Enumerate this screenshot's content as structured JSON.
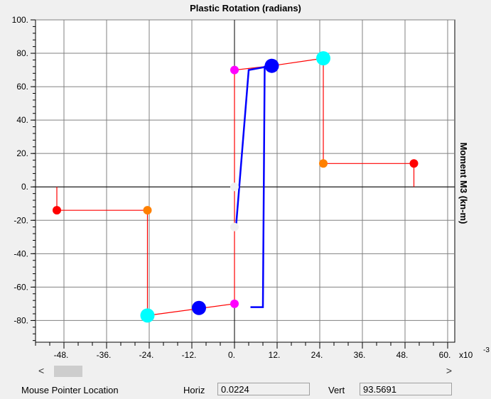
{
  "chart_data": {
    "type": "line",
    "title": "Plastic Rotation  (radians)",
    "ylabel": "Moment M3   (kn-m)",
    "x_multiplier_label": "x10",
    "x_multiplier_exponent": "-3",
    "xlim": [
      -56,
      62
    ],
    "ylim": [
      -93,
      100
    ],
    "x_ticks": [
      -48,
      -36,
      -24,
      -12,
      0,
      12,
      24,
      36,
      48,
      60
    ],
    "x_tick_labels": [
      "-48.",
      "-36.",
      "-24.",
      "-12.",
      "0.",
      "12.",
      "24.",
      "36.",
      "48.",
      "60."
    ],
    "y_ticks": [
      100,
      80,
      60,
      40,
      20,
      0,
      -20,
      -40,
      -60,
      -80
    ],
    "y_tick_labels": [
      "100.",
      "80.",
      "60.",
      "40.",
      "20.",
      "0.",
      "-20.",
      "-40.",
      "-60.",
      "-80."
    ],
    "grid": true,
    "series": [
      {
        "color": "#ff0000",
        "points": [
          [
            50.5,
            0
          ],
          [
            50.5,
            14
          ],
          [
            25,
            14
          ],
          [
            25,
            77
          ],
          [
            10.5,
            72.5
          ],
          [
            0,
            70
          ],
          [
            0,
            -25
          ],
          [
            0,
            -70
          ],
          [
            -24.5,
            -77
          ],
          [
            -24.5,
            -14
          ],
          [
            -50,
            -14
          ],
          [
            -50,
            0
          ]
        ]
      },
      {
        "color": "#0000ff",
        "points": [
          [
            4.5,
            -72
          ],
          [
            8,
            -72
          ],
          [
            8.5,
            72
          ],
          [
            10.5,
            72.5
          ],
          [
            4,
            70
          ],
          [
            0.5,
            -22
          ]
        ]
      }
    ],
    "markers": [
      {
        "x": 0,
        "y": 70,
        "color": "#ff00ff",
        "size": "small"
      },
      {
        "x": 0,
        "y": -70,
        "color": "#ff00ff",
        "size": "small"
      },
      {
        "x": 0,
        "y": 0,
        "color": "#f0f0f0",
        "size": "small"
      },
      {
        "x": 0,
        "y": -24,
        "color": "#f0f0f0",
        "size": "small"
      },
      {
        "x": 10.5,
        "y": 72.5,
        "color": "#0000ff",
        "size": "large"
      },
      {
        "x": -10,
        "y": -72.5,
        "color": "#0000ff",
        "size": "large"
      },
      {
        "x": 25,
        "y": 77,
        "color": "#00ffff",
        "size": "large"
      },
      {
        "x": -24.5,
        "y": -77,
        "color": "#00ffff",
        "size": "large"
      },
      {
        "x": 25,
        "y": 14,
        "color": "#ff8000",
        "size": "small"
      },
      {
        "x": -24.5,
        "y": -14,
        "color": "#ff8000",
        "size": "small"
      },
      {
        "x": 50.5,
        "y": 14,
        "color": "#ff0000",
        "size": "small"
      },
      {
        "x": -50,
        "y": -14,
        "color": "#ff0000",
        "size": "small"
      }
    ]
  },
  "status": {
    "label": "Mouse Pointer Location",
    "horiz_label": "Horiz",
    "horiz_value": "0.0224",
    "vert_label": "Vert",
    "vert_value": "93.5691"
  },
  "scroll": {
    "left": "<",
    "right": ">"
  }
}
